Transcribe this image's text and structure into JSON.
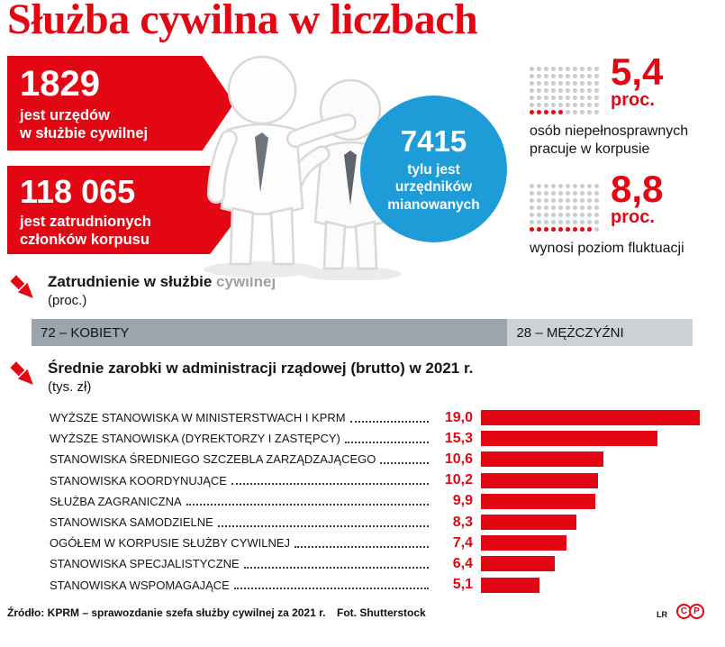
{
  "title": "Służba cywilna w liczbach",
  "colors": {
    "accent": "#e30613",
    "blue": "#1e9cd7",
    "bar_women": "#9aa5ad",
    "bar_men": "#cbd1d5"
  },
  "left_stats": [
    {
      "value": "1829",
      "label": "jest urzędów\nw służbie cywilnej"
    },
    {
      "value": "118 065",
      "label": "jest zatrudnionych\nczłonków korpusu"
    }
  ],
  "circle_stat": {
    "value": "7415",
    "label": "tylu jest\nurzędników\nmianowanych"
  },
  "dot_stats": [
    {
      "value": "5,4",
      "unit": "proc.",
      "desc": "osób niepełnosprawnych pracuje w korpusie",
      "red_dots": 5,
      "cols": 10,
      "rows": 7
    },
    {
      "value": "8,8",
      "unit": "proc.",
      "desc": "wynosi poziom fluktuacji",
      "red_dots": 9,
      "cols": 10,
      "rows": 7
    }
  ],
  "employment": {
    "heading_main": "Zatrudnienie w służbie",
    "heading_muted": "cywilnej",
    "subheading": "(proc.)",
    "segments": [
      {
        "label": "72 – KOBIETY",
        "value": 72
      },
      {
        "label": "28 – MĘŻCZYŹNI",
        "value": 28
      }
    ]
  },
  "salaries": {
    "heading": "Średnie zarobki w administracji rządowej (brutto) w 2021 r.",
    "subheading": "(tys. zł)",
    "max_value": 19,
    "rows": [
      {
        "label": "WYŻSZE STANOWISKA W MINISTERSTWACH I KPRM",
        "display": "19,0",
        "value": 19.0
      },
      {
        "label": "WYŻSZE STANOWISKA (DYREKTORZY I ZASTĘPCY)",
        "display": "15,3",
        "value": 15.3
      },
      {
        "label": "STANOWISKA ŚREDNIEGO SZCZEBLA ZARZĄDZAJĄCEGO",
        "display": "10,6",
        "value": 10.6
      },
      {
        "label": "STANOWISKA KOORDYNUJĄCE",
        "display": "10,2",
        "value": 10.2
      },
      {
        "label": "SŁUŻBA ZAGRANICZNA",
        "display": "9,9",
        "value": 9.9
      },
      {
        "label": "STANOWISKA SAMODZIELNE",
        "display": "8,3",
        "value": 8.3
      },
      {
        "label": "OGÓŁEM W KORPUSIE SŁUŻBY CYWILNEJ",
        "display": "7,4",
        "value": 7.4
      },
      {
        "label": "STANOWISKA SPECJALISTYCZNE",
        "display": "6,4",
        "value": 6.4
      },
      {
        "label": "STANOWISKA WSPOMAGAJĄCE",
        "display": "5,1",
        "value": 5.1
      }
    ]
  },
  "footer": {
    "source": "Źródło: KPRM – sprawozdanie szefa służby cywilnej za 2021 r.",
    "photo": "Fot. Shutterstock",
    "credit": "LR",
    "logo_letters": [
      "C",
      "P"
    ]
  },
  "chart_data": [
    {
      "type": "bar",
      "orientation": "horizontal",
      "title": "Średnie zarobki w administracji rządowej (brutto) w 2021 r.",
      "xlabel": "tys. zł",
      "ylabel": "",
      "xlim": [
        0,
        19
      ],
      "categories": [
        "WYŻSZE STANOWISKA W MINISTERSTWACH I KPRM",
        "WYŻSZE STANOWISKA (DYREKTORZY I ZASTĘPCY)",
        "STANOWISKA ŚREDNIEGO SZCZEBLA ZARZĄDZAJĄCEGO",
        "STANOWISKA KOORDYNUJĄCE",
        "SŁUŻBA ZAGRANICZNA",
        "STANOWISKA SAMODZIELNE",
        "OGÓŁEM W KORPUSIE SŁUŻBY CYWILNEJ",
        "STANOWISKA SPECJALISTYCZNE",
        "STANOWISKA WSPOMAGAJĄCE"
      ],
      "values": [
        19.0,
        15.3,
        10.6,
        10.2,
        9.9,
        8.3,
        7.4,
        6.4,
        5.1
      ],
      "bar_color": "#e30613",
      "grid": false,
      "legend": false
    },
    {
      "type": "bar",
      "stacked": true,
      "title": "Zatrudnienie w służbie cywilnej (proc.)",
      "categories": [
        "KOBIETY",
        "MĘŻCZYŹNI"
      ],
      "values": [
        72,
        28
      ]
    },
    {
      "type": "table",
      "title": "Służba cywilna w liczbach",
      "categories": [
        "urzędów w służbie cywilnej",
        "zatrudnionych członków korpusu",
        "urzędników mianowanych",
        "proc. osób niepełnosprawnych w korpusie",
        "proc. — poziom fluktuacji"
      ],
      "values": [
        1829,
        118065,
        7415,
        5.4,
        8.8
      ]
    }
  ]
}
